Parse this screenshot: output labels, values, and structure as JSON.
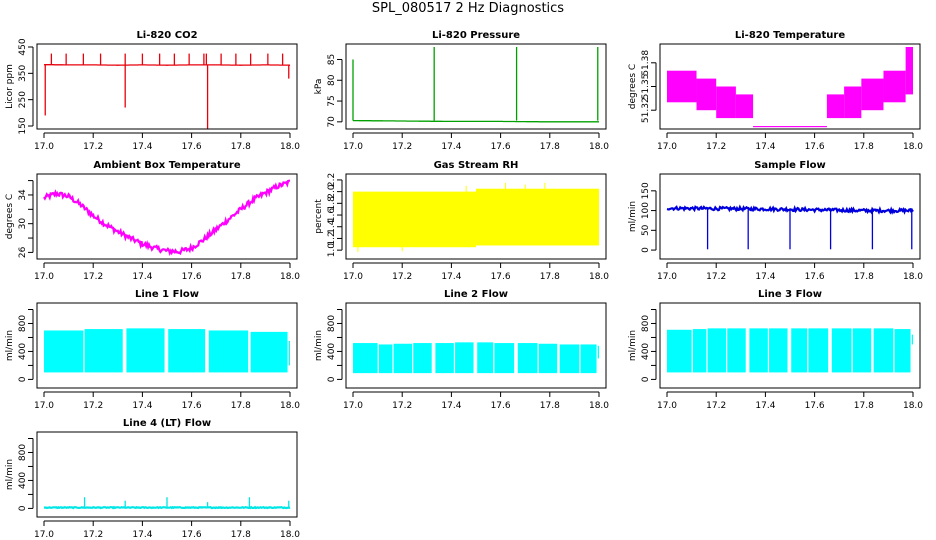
{
  "page": {
    "title": "SPL_080517  2 Hz Diagnostics"
  },
  "chart_data": [
    {
      "type": "line",
      "title": "Li-820 CO2",
      "ylabel": "Licor ppm",
      "xlabel": "",
      "xlim": [
        17.0,
        18.0
      ],
      "ylim": [
        150,
        450
      ],
      "xticks": [
        17.0,
        17.2,
        17.4,
        17.6,
        17.8,
        18.0
      ],
      "xtick_labels": [
        "17.0",
        "17.2",
        "17.4",
        "17.6",
        "17.8",
        "18.0"
      ],
      "yticks": [
        150,
        250,
        350,
        450
      ],
      "color": "#e8000b",
      "series": [
        {
          "x": [
            17.0,
            17.1,
            17.2,
            17.3,
            17.4,
            17.5,
            17.6,
            17.7,
            17.8,
            17.9,
            18.0
          ],
          "values": [
            383,
            382,
            382,
            381,
            382,
            381,
            382,
            382,
            381,
            382,
            381
          ]
        }
      ],
      "spikes": [
        {
          "x": 17.005,
          "y": 190
        },
        {
          "x": 17.03,
          "y": 425
        },
        {
          "x": 17.09,
          "y": 425
        },
        {
          "x": 17.16,
          "y": 425
        },
        {
          "x": 17.23,
          "y": 425
        },
        {
          "x": 17.33,
          "y": 220
        },
        {
          "x": 17.33,
          "y": 425
        },
        {
          "x": 17.4,
          "y": 425
        },
        {
          "x": 17.47,
          "y": 425
        },
        {
          "x": 17.53,
          "y": 425
        },
        {
          "x": 17.59,
          "y": 425
        },
        {
          "x": 17.65,
          "y": 425
        },
        {
          "x": 17.66,
          "y": 425
        },
        {
          "x": 17.665,
          "y": 130
        },
        {
          "x": 17.72,
          "y": 425
        },
        {
          "x": 17.78,
          "y": 425
        },
        {
          "x": 17.84,
          "y": 425
        },
        {
          "x": 17.91,
          "y": 425
        },
        {
          "x": 17.97,
          "y": 425
        },
        {
          "x": 17.995,
          "y": 330
        }
      ]
    },
    {
      "type": "line",
      "title": "Li-820 Pressure",
      "ylabel": "kPa",
      "xlabel": "",
      "xlim": [
        17.0,
        18.0
      ],
      "ylim": [
        69,
        88
      ],
      "xticks": [
        17.0,
        17.2,
        17.4,
        17.6,
        17.8,
        18.0
      ],
      "xtick_labels": [
        "17.0",
        "17.2",
        "17.4",
        "17.6",
        "17.8",
        "18.0"
      ],
      "yticks": [
        70,
        75,
        80,
        85
      ],
      "color": "#00a000",
      "series": [
        {
          "x": [
            17.0,
            17.2,
            17.4,
            17.6,
            17.8,
            18.0
          ],
          "values": [
            70.3,
            70.2,
            70.1,
            70.1,
            70.0,
            70.0
          ]
        }
      ],
      "spikes": [
        {
          "x": 17.0,
          "y": 85
        },
        {
          "x": 17.33,
          "y": 88
        },
        {
          "x": 17.665,
          "y": 88
        },
        {
          "x": 17.995,
          "y": 88
        }
      ]
    },
    {
      "type": "area",
      "title": "Li-820 Temperature",
      "ylabel": "degrees C",
      "xlabel": "",
      "xlim": [
        17.0,
        18.0
      ],
      "ylim": [
        51.3,
        51.4
      ],
      "xticks": [
        17.0,
        17.2,
        17.4,
        17.6,
        17.8,
        18.0
      ],
      "xtick_labels": [
        "17.0",
        "17.2",
        "17.4",
        "17.6",
        "17.8",
        "18.0"
      ],
      "yticks": [
        51.32,
        51.35,
        51.38
      ],
      "ytick_labels": [
        "51.32",
        "51.35",
        "51.38"
      ],
      "color": "#ff00ff",
      "bands": [
        {
          "x0": 17.0,
          "x1": 17.12,
          "lo": 51.33,
          "hi": 51.37
        },
        {
          "x0": 17.12,
          "x1": 17.2,
          "lo": 51.32,
          "hi": 51.36
        },
        {
          "x0": 17.2,
          "x1": 17.28,
          "lo": 51.31,
          "hi": 51.35
        },
        {
          "x0": 17.28,
          "x1": 17.35,
          "lo": 51.31,
          "hi": 51.34
        },
        {
          "x0": 17.35,
          "x1": 17.65,
          "lo": 51.3,
          "hi": 51.3
        },
        {
          "x0": 17.65,
          "x1": 17.72,
          "lo": 51.31,
          "hi": 51.34
        },
        {
          "x0": 17.72,
          "x1": 17.79,
          "lo": 51.31,
          "hi": 51.35
        },
        {
          "x0": 17.79,
          "x1": 17.88,
          "lo": 51.32,
          "hi": 51.36
        },
        {
          "x0": 17.88,
          "x1": 17.97,
          "lo": 51.33,
          "hi": 51.37
        },
        {
          "x0": 17.97,
          "x1": 18.0,
          "lo": 51.34,
          "hi": 51.4
        }
      ]
    },
    {
      "type": "line",
      "title": "Ambient Box Temperature",
      "ylabel": "degrees C",
      "xlabel": "",
      "xlim": [
        17.0,
        18.0
      ],
      "ylim": [
        25.5,
        36.5
      ],
      "xticks": [
        17.0,
        17.2,
        17.4,
        17.6,
        17.8,
        18.0
      ],
      "xtick_labels": [
        "17.0",
        "17.2",
        "17.4",
        "17.6",
        "17.8",
        "18.0"
      ],
      "yticks": [
        26,
        30,
        34
      ],
      "yminor": [
        28,
        32,
        36
      ],
      "color": "#ff00ff",
      "noise": 0.35,
      "series": [
        {
          "x": [
            17.0,
            17.05,
            17.1,
            17.15,
            17.2,
            17.25,
            17.3,
            17.35,
            17.4,
            17.45,
            17.5,
            17.55,
            17.6,
            17.65,
            17.7,
            17.75,
            17.8,
            17.85,
            17.9,
            17.95,
            18.0
          ],
          "values": [
            33.6,
            34.2,
            33.8,
            32.6,
            31.1,
            29.9,
            28.9,
            28.0,
            27.2,
            26.6,
            26.2,
            26.1,
            26.6,
            27.8,
            29.2,
            30.6,
            32.0,
            33.3,
            34.3,
            35.2,
            35.8
          ]
        }
      ]
    },
    {
      "type": "area",
      "title": "Gas Stream RH",
      "ylabel": "percent",
      "xlabel": "",
      "xlim": [
        17.0,
        18.0
      ],
      "ylim": [
        0.9,
        2.25
      ],
      "xticks": [
        17.0,
        17.2,
        17.4,
        17.6,
        17.8,
        18.0
      ],
      "xtick_labels": [
        "17.0",
        "17.2",
        "17.4",
        "17.6",
        "17.8",
        "18.0"
      ],
      "yticks": [
        1.0,
        1.2,
        1.4,
        1.6,
        1.8,
        2.0,
        2.2
      ],
      "ytick_labels": [
        "1.0",
        "1.2",
        "1.4",
        "1.6",
        "1.8",
        "2.0",
        "2.2"
      ],
      "color": "#ffff00",
      "bands": [
        {
          "x0": 17.0,
          "x1": 17.5,
          "lo": 1.05,
          "hi": 2.0
        },
        {
          "x0": 17.5,
          "x1": 18.0,
          "lo": 1.08,
          "hi": 2.05
        }
      ],
      "outliers": [
        {
          "x": 17.02,
          "y": 0.97
        },
        {
          "x": 17.2,
          "y": 0.98
        },
        {
          "x": 17.46,
          "y": 2.1
        },
        {
          "x": 17.62,
          "y": 2.15
        },
        {
          "x": 17.7,
          "y": 2.12
        },
        {
          "x": 17.78,
          "y": 2.15
        }
      ]
    },
    {
      "type": "line",
      "title": "Sample Flow",
      "ylabel": "ml/min",
      "xlabel": "",
      "xlim": [
        17.0,
        18.0
      ],
      "ylim": [
        -15,
        185
      ],
      "xticks": [
        17.0,
        17.2,
        17.4,
        17.6,
        17.8,
        18.0
      ],
      "xtick_labels": [
        "17.0",
        "17.2",
        "17.4",
        "17.6",
        "17.8",
        "18.0"
      ],
      "yticks": [
        0,
        50,
        100,
        150
      ],
      "color": "#0000dd",
      "noise": 4,
      "series": [
        {
          "x": [
            17.0,
            17.2,
            17.4,
            17.6,
            17.8,
            18.0
          ],
          "values": [
            106,
            105,
            104,
            102,
            100,
            100
          ]
        }
      ],
      "spikes": [
        {
          "x": 17.165,
          "y": 2
        },
        {
          "x": 17.33,
          "y": 2
        },
        {
          "x": 17.5,
          "y": 2
        },
        {
          "x": 17.665,
          "y": 2
        },
        {
          "x": 17.835,
          "y": 2
        },
        {
          "x": 17.995,
          "y": 2
        }
      ]
    },
    {
      "type": "area",
      "title": "Line 1 Flow",
      "ylabel": "ml/min",
      "xlabel": "",
      "xlim": [
        17.0,
        18.0
      ],
      "ylim": [
        -80,
        1050
      ],
      "xticks": [
        17.0,
        17.2,
        17.4,
        17.6,
        17.8,
        18.0
      ],
      "xtick_labels": [
        "17.0",
        "17.2",
        "17.4",
        "17.6",
        "17.8",
        "18.0"
      ],
      "yticks": [
        0,
        400,
        800
      ],
      "yminor": [
        200,
        600,
        1000
      ],
      "color": "#00ffff",
      "bands": [
        {
          "x0": 17.0,
          "x1": 17.16,
          "lo": 100,
          "hi": 700
        },
        {
          "x0": 17.165,
          "x1": 17.32,
          "lo": 100,
          "hi": 720
        },
        {
          "x0": 17.335,
          "x1": 17.49,
          "lo": 100,
          "hi": 730
        },
        {
          "x0": 17.505,
          "x1": 17.655,
          "lo": 100,
          "hi": 720
        },
        {
          "x0": 17.67,
          "x1": 17.83,
          "lo": 100,
          "hi": 700
        },
        {
          "x0": 17.84,
          "x1": 17.99,
          "lo": 100,
          "hi": 680
        },
        {
          "x0": 17.995,
          "x1": 18.0,
          "lo": 200,
          "hi": 550
        }
      ]
    },
    {
      "type": "area",
      "title": "Line 2 Flow",
      "ylabel": "ml/min",
      "xlabel": "",
      "xlim": [
        17.0,
        18.0
      ],
      "ylim": [
        -80,
        1050
      ],
      "xticks": [
        17.0,
        17.2,
        17.4,
        17.6,
        17.8,
        18.0
      ],
      "xtick_labels": [
        "17.0",
        "17.2",
        "17.4",
        "17.6",
        "17.8",
        "18.0"
      ],
      "yticks": [
        0,
        400,
        800
      ],
      "yminor": [
        200,
        600,
        1000
      ],
      "color": "#00ffff",
      "bands": [
        {
          "x0": 17.0,
          "x1": 17.1,
          "lo": 90,
          "hi": 520
        },
        {
          "x0": 17.105,
          "x1": 17.16,
          "lo": 90,
          "hi": 500
        },
        {
          "x0": 17.165,
          "x1": 17.24,
          "lo": 90,
          "hi": 510
        },
        {
          "x0": 17.245,
          "x1": 17.32,
          "lo": 90,
          "hi": 520
        },
        {
          "x0": 17.335,
          "x1": 17.41,
          "lo": 90,
          "hi": 520
        },
        {
          "x0": 17.415,
          "x1": 17.49,
          "lo": 90,
          "hi": 530
        },
        {
          "x0": 17.505,
          "x1": 17.57,
          "lo": 90,
          "hi": 530
        },
        {
          "x0": 17.575,
          "x1": 17.655,
          "lo": 90,
          "hi": 520
        },
        {
          "x0": 17.67,
          "x1": 17.75,
          "lo": 90,
          "hi": 520
        },
        {
          "x0": 17.755,
          "x1": 17.83,
          "lo": 90,
          "hi": 510
        },
        {
          "x0": 17.84,
          "x1": 17.92,
          "lo": 90,
          "hi": 500
        },
        {
          "x0": 17.925,
          "x1": 17.99,
          "lo": 90,
          "hi": 500
        },
        {
          "x0": 17.995,
          "x1": 18.0,
          "lo": 300,
          "hi": 480
        }
      ]
    },
    {
      "type": "area",
      "title": "Line 3 Flow",
      "ylabel": "ml/min",
      "xlabel": "",
      "xlim": [
        17.0,
        18.0
      ],
      "ylim": [
        -80,
        1050
      ],
      "xticks": [
        17.0,
        17.2,
        17.4,
        17.6,
        17.8,
        18.0
      ],
      "xtick_labels": [
        "17.0",
        "17.2",
        "17.4",
        "17.6",
        "17.8",
        "18.0"
      ],
      "yticks": [
        0,
        400,
        800
      ],
      "yminor": [
        200,
        600,
        1000
      ],
      "color": "#00ffff",
      "bands": [
        {
          "x0": 17.0,
          "x1": 17.1,
          "lo": 100,
          "hi": 710
        },
        {
          "x0": 17.105,
          "x1": 17.16,
          "lo": 100,
          "hi": 720
        },
        {
          "x0": 17.165,
          "x1": 17.24,
          "lo": 100,
          "hi": 730
        },
        {
          "x0": 17.245,
          "x1": 17.32,
          "lo": 100,
          "hi": 730
        },
        {
          "x0": 17.335,
          "x1": 17.41,
          "lo": 100,
          "hi": 730
        },
        {
          "x0": 17.415,
          "x1": 17.49,
          "lo": 100,
          "hi": 730
        },
        {
          "x0": 17.505,
          "x1": 17.57,
          "lo": 100,
          "hi": 730
        },
        {
          "x0": 17.575,
          "x1": 17.655,
          "lo": 100,
          "hi": 730
        },
        {
          "x0": 17.67,
          "x1": 17.75,
          "lo": 100,
          "hi": 730
        },
        {
          "x0": 17.755,
          "x1": 17.83,
          "lo": 100,
          "hi": 730
        },
        {
          "x0": 17.84,
          "x1": 17.92,
          "lo": 100,
          "hi": 730
        },
        {
          "x0": 17.925,
          "x1": 17.99,
          "lo": 100,
          "hi": 720
        },
        {
          "x0": 17.995,
          "x1": 18.0,
          "lo": 500,
          "hi": 640
        }
      ]
    },
    {
      "type": "line",
      "title": "Line 4 (LT) Flow",
      "ylabel": "ml/min",
      "xlabel": "",
      "xlim": [
        17.0,
        18.0
      ],
      "ylim": [
        -80,
        1050
      ],
      "xticks": [
        17.0,
        17.2,
        17.4,
        17.6,
        17.8,
        18.0
      ],
      "xtick_labels": [
        "17.0",
        "17.2",
        "17.4",
        "17.6",
        "17.8",
        "18.0"
      ],
      "yticks": [
        0,
        400,
        800
      ],
      "yminor": [
        200,
        600,
        1000
      ],
      "color": "#00e6e6",
      "noise": 6,
      "series": [
        {
          "x": [
            17.0,
            18.0
          ],
          "values": [
            12,
            12
          ]
        }
      ],
      "spikes": [
        {
          "x": 17.165,
          "y": 160
        },
        {
          "x": 17.33,
          "y": 110
        },
        {
          "x": 17.5,
          "y": 160
        },
        {
          "x": 17.665,
          "y": 90
        },
        {
          "x": 17.835,
          "y": 160
        },
        {
          "x": 17.995,
          "y": 110
        }
      ]
    }
  ]
}
